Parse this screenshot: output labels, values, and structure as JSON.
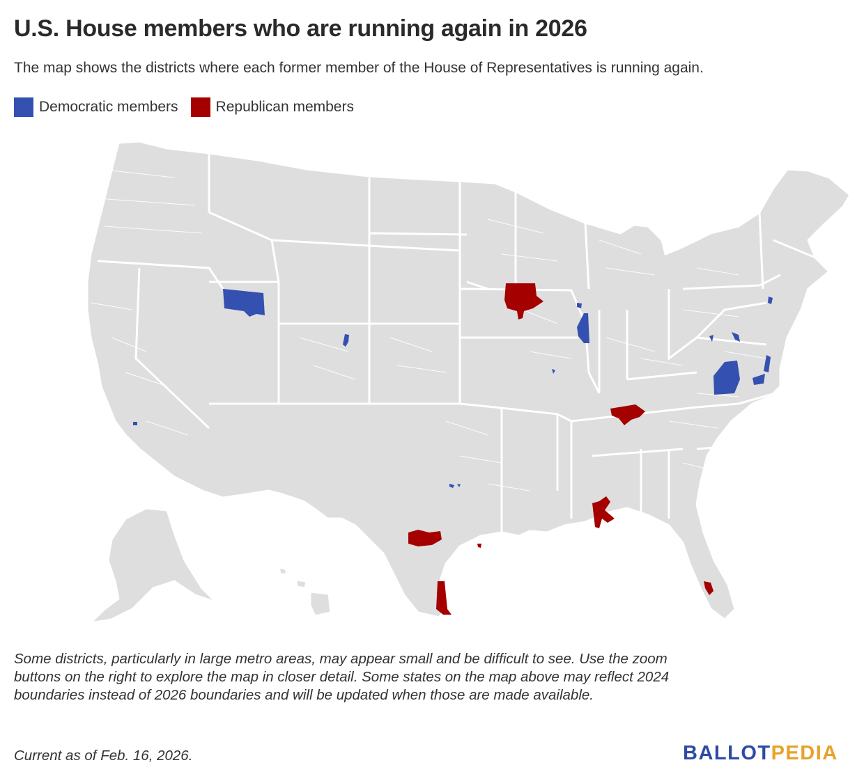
{
  "title": "U.S. House members who are running again in 2026",
  "subtitle": "The map shows the districts where each former member of the House of Representatives is running again.",
  "legend": [
    {
      "label": "Democratic members",
      "color": "#3450b0"
    },
    {
      "label": "Republican members",
      "color": "#a50000"
    }
  ],
  "map": {
    "base_color": "#dedede",
    "border_color": "#ffffff",
    "highlighted_districts": [
      {
        "party": "Democratic",
        "area": "Idaho south-central"
      },
      {
        "party": "Democratic",
        "area": "Colorado north-central"
      },
      {
        "party": "Democratic",
        "area": "Southern California metro"
      },
      {
        "party": "Democratic",
        "area": "Dallas metro, Texas"
      },
      {
        "party": "Democratic",
        "area": "Illinois east-central"
      },
      {
        "party": "Democratic",
        "area": "Chicago metro, Illinois"
      },
      {
        "party": "Democratic",
        "area": "St. Louis metro, Missouri"
      },
      {
        "party": "Democratic",
        "area": "Virginia central"
      },
      {
        "party": "Democratic",
        "area": "Virginia Tidewater"
      },
      {
        "party": "Democratic",
        "area": "Maryland"
      },
      {
        "party": "Democratic",
        "area": "Delaware / Eastern Shore"
      },
      {
        "party": "Democratic",
        "area": "New Jersey"
      },
      {
        "party": "Republican",
        "area": "Iowa north-central"
      },
      {
        "party": "Republican",
        "area": "Kentucky south-central"
      },
      {
        "party": "Republican",
        "area": "Alabama south-west"
      },
      {
        "party": "Republican",
        "area": "Texas central"
      },
      {
        "party": "Republican",
        "area": "Houston metro, Texas"
      },
      {
        "party": "Republican",
        "area": "Texas south coast"
      },
      {
        "party": "Republican",
        "area": "South Florida"
      }
    ]
  },
  "note": "Some districts, particularly in large metro areas, may appear small and be difficult to see. Use the zoom buttons on the right to explore the map in closer detail. Some states on the map above may reflect 2024 boundaries instead of 2026 boundaries and will be updated when those are made available.",
  "updated": "Current as of Feb. 16, 2026.",
  "logo": {
    "part1": "BALLOT",
    "part2": "PEDIA"
  }
}
